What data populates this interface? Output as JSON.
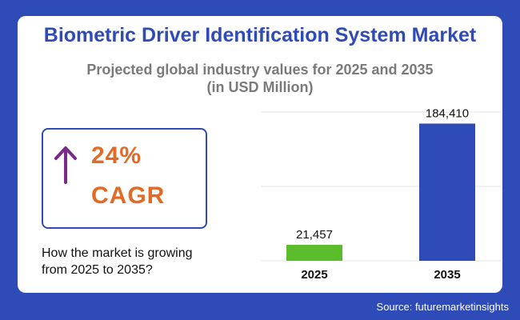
{
  "header": {
    "title": "Biometric Driver Identification System Market",
    "subtitle_line1": "Projected global industry values for 2025 and 2035",
    "subtitle_line2": "(in USD Million)"
  },
  "cagr": {
    "value": "24%",
    "label": "CAGR",
    "arrow_icon": "up-arrow-icon"
  },
  "note": {
    "line1": "How the market is growing",
    "line2": "from 2025 to 2035?"
  },
  "source": "Source: futuremarketinsights",
  "colors": {
    "background": "#2f4bb8",
    "title": "#2f4bb8",
    "accent_orange": "#e06a26",
    "arrow": "#7b2a8c",
    "bar_2025": "#5bbd2b",
    "bar_2035": "#2f4bb8"
  },
  "chart_data": {
    "type": "bar",
    "categories": [
      "2025",
      "2035"
    ],
    "values": [
      21457,
      184410
    ],
    "value_labels": [
      "21,457",
      "184,410"
    ],
    "bar_colors": [
      "#5bbd2b",
      "#2f4bb8"
    ],
    "ylim": [
      0,
      200000
    ],
    "grid": true
  }
}
